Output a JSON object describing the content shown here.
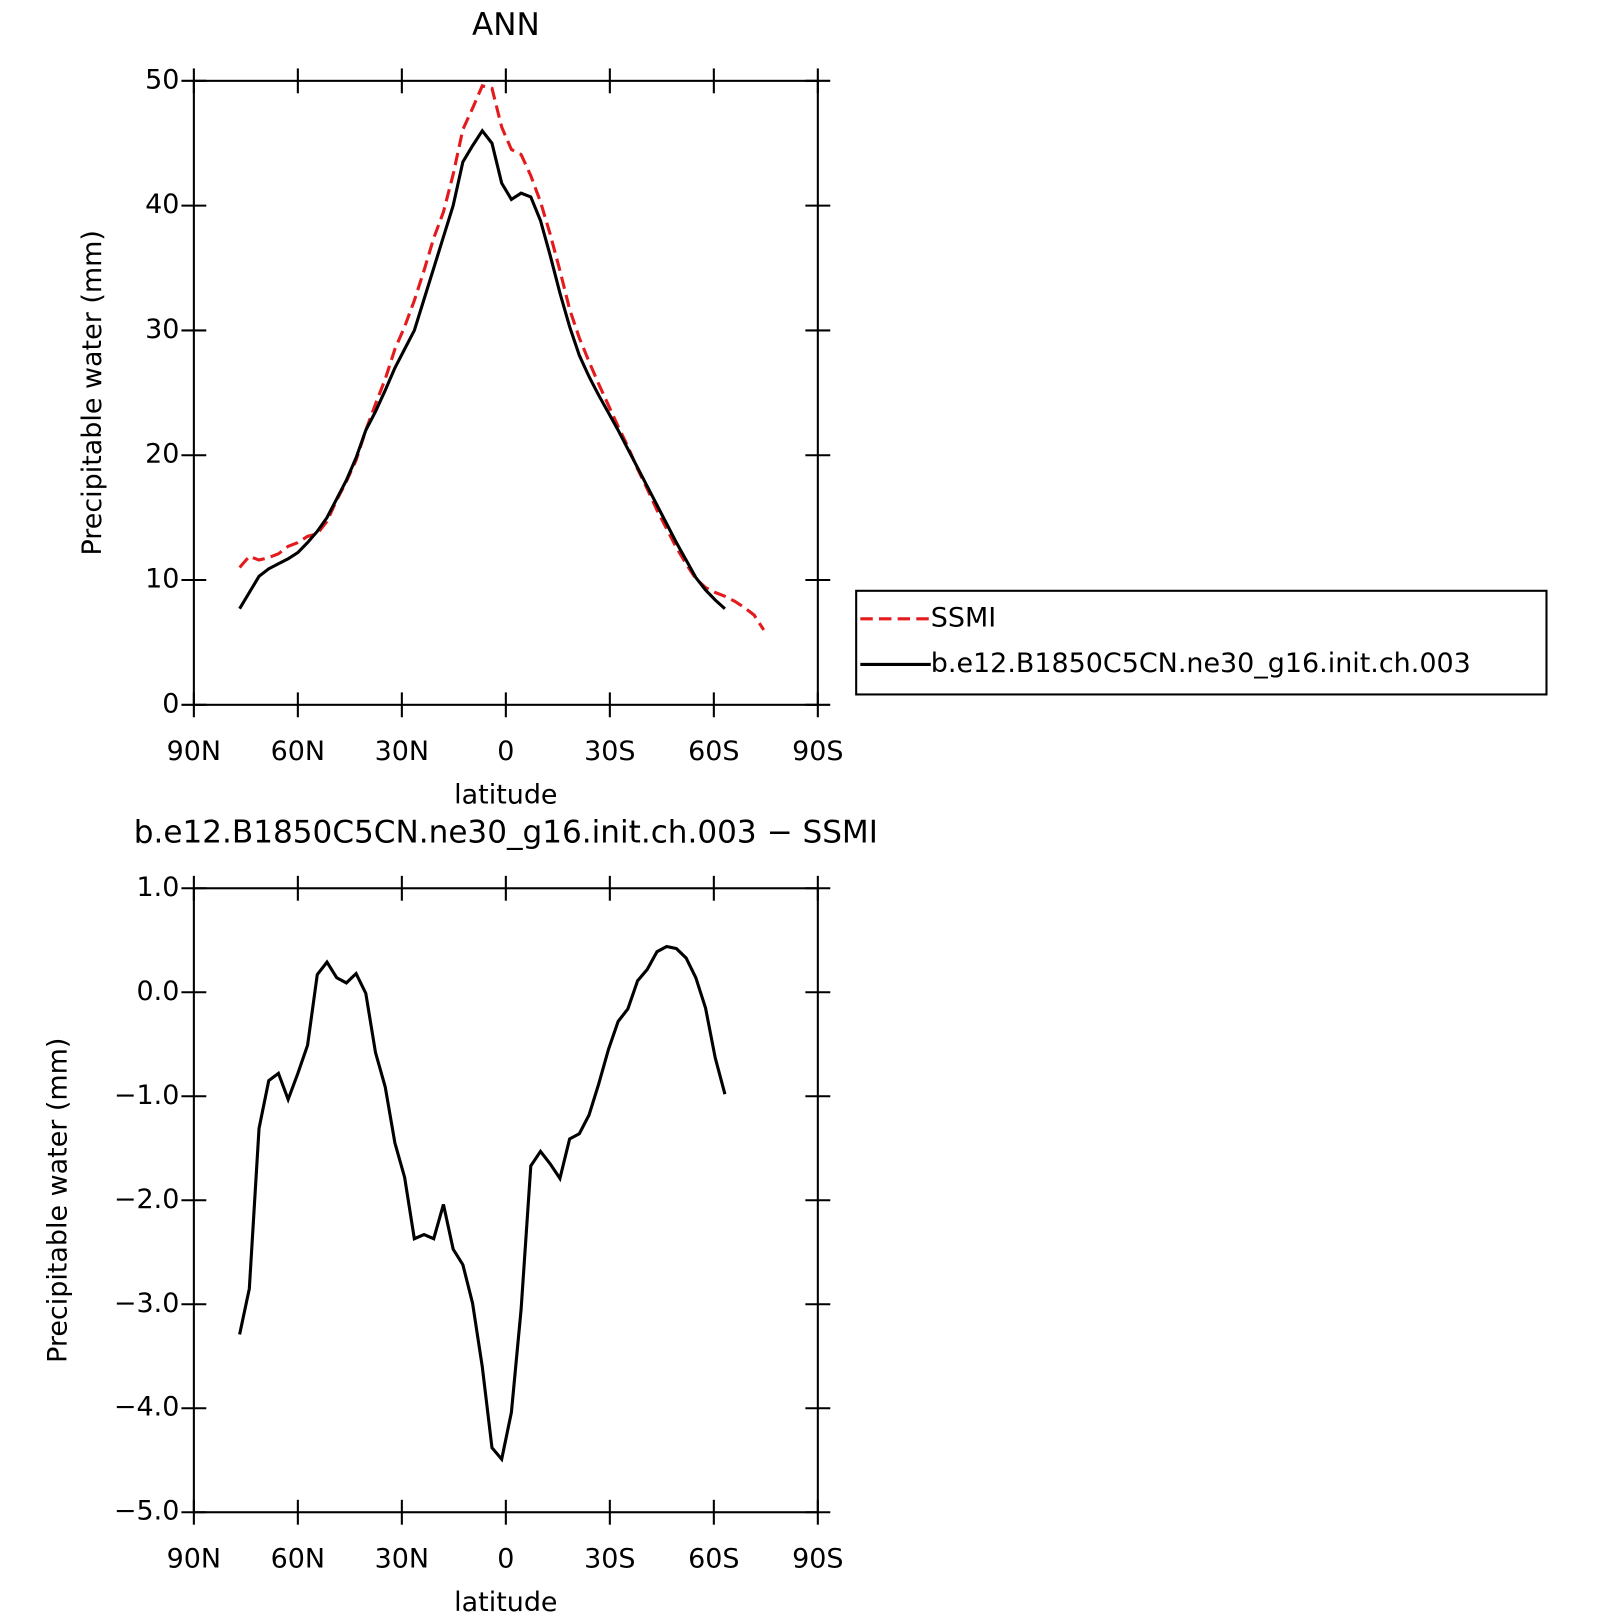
{
  "chart_data": [
    {
      "type": "line",
      "title": "ANN",
      "xlabel": "latitude",
      "ylabel": "Precipitable water (mm)",
      "x": [
        76.8,
        74.0,
        71.2,
        68.4,
        65.6,
        62.8,
        60.0,
        57.2,
        54.4,
        51.6,
        48.8,
        46.0,
        43.2,
        40.4,
        37.6,
        34.8,
        32.0,
        29.2,
        26.4,
        23.6,
        20.8,
        18.0,
        15.2,
        12.4,
        9.6,
        6.8,
        4.0,
        1.2,
        -1.6,
        -4.4,
        -7.2,
        -10.0,
        -12.8,
        -15.6,
        -18.4,
        -21.2,
        -24.0,
        -26.8,
        -29.6,
        -32.4,
        -35.2,
        -38.0,
        -40.8,
        -43.6,
        -46.4,
        -49.2,
        -52.0,
        -54.8,
        -57.6,
        -60.4,
        -63.2,
        -66.0,
        -68.8,
        -71.6,
        -74.4
      ],
      "series": [
        {
          "name": "SSMI",
          "color": "#e41a1c",
          "style": "dashed",
          "values": [
            11.0,
            11.9,
            11.6,
            11.8,
            12.1,
            12.7,
            13.0,
            13.5,
            13.7,
            14.7,
            16.4,
            17.9,
            19.6,
            22.0,
            24.1,
            26.1,
            28.5,
            30.3,
            32.4,
            34.8,
            37.4,
            39.5,
            42.5,
            46.1,
            47.8,
            49.6,
            49.4,
            46.3,
            44.5,
            44.1,
            42.4,
            40.3,
            37.7,
            34.8,
            31.7,
            29.4,
            27.5,
            25.7,
            24.0,
            22.3,
            20.7,
            18.9,
            17.3,
            15.6,
            14.1,
            12.6,
            11.3,
            10.1,
            9.4,
            9.0,
            8.7,
            8.3,
            7.8,
            7.2,
            6.0
          ]
        },
        {
          "name": "b.e12.B1850C5CN.ne30_g16.init.ch.003",
          "color": "#000000",
          "style": "solid",
          "values": [
            7.7,
            9.0,
            10.3,
            10.9,
            11.3,
            11.7,
            12.2,
            13.0,
            13.9,
            15.0,
            16.5,
            18.0,
            19.8,
            22.0,
            23.5,
            25.2,
            27.0,
            28.5,
            30.0,
            32.5,
            35.0,
            37.5,
            40.0,
            43.5,
            44.8,
            46.0,
            45.0,
            41.8,
            40.5,
            41.0,
            40.7,
            38.8,
            36.0,
            33.0,
            30.3,
            28.0,
            26.3,
            24.8,
            23.4,
            22.0,
            20.5,
            19.0,
            17.5,
            16.0,
            14.5,
            13.0,
            11.6,
            10.2,
            9.2,
            8.4,
            7.7,
            null,
            null,
            null,
            null
          ]
        }
      ],
      "xlim": [
        90,
        -90
      ],
      "xticks": [
        {
          "value": 90,
          "label": "90N"
        },
        {
          "value": 60,
          "label": "60N"
        },
        {
          "value": 30,
          "label": "30N"
        },
        0,
        {
          "value": -30,
          "label": "30S"
        },
        {
          "value": -60,
          "label": "60S"
        },
        {
          "value": -90,
          "label": "90S"
        }
      ],
      "ylim": [
        0,
        50
      ],
      "yticks": [
        0,
        10,
        20,
        30,
        40,
        50
      ],
      "legend": "right"
    },
    {
      "type": "line",
      "title": "b.e12.B1850C5CN.ne30_g16.init.ch.003 − SSMI",
      "xlabel": "latitude",
      "ylabel": "Precipitable water (mm)",
      "x": [
        76.8,
        74.0,
        71.2,
        68.4,
        65.6,
        62.8,
        60.0,
        57.2,
        54.4,
        51.6,
        48.8,
        46.0,
        43.2,
        40.4,
        37.6,
        34.8,
        32.0,
        29.2,
        26.4,
        23.6,
        20.8,
        18.0,
        15.2,
        12.4,
        9.6,
        6.8,
        4.0,
        1.2,
        -1.6,
        -4.4,
        -7.2,
        -10.0,
        -12.8,
        -15.6,
        -18.4,
        -21.2,
        -24.0,
        -26.8,
        -29.6,
        -32.4,
        -35.2,
        -38.0,
        -40.8,
        -43.6,
        -46.4,
        -49.2,
        -52.0,
        -54.8,
        -57.6,
        -60.4,
        -63.2
      ],
      "values": [
        -3.29,
        -2.85,
        -1.31,
        -0.85,
        -0.78,
        -1.03,
        -0.78,
        -0.51,
        0.17,
        0.29,
        0.14,
        0.09,
        0.18,
        -0.01,
        -0.58,
        -0.91,
        -1.45,
        -1.78,
        -2.37,
        -2.33,
        -2.37,
        -2.04,
        -2.47,
        -2.62,
        -2.99,
        -3.6,
        -4.38,
        -4.49,
        -4.04,
        -3.05,
        -1.67,
        -1.53,
        -1.65,
        -1.79,
        -1.41,
        -1.36,
        -1.18,
        -0.88,
        -0.55,
        -0.28,
        -0.16,
        0.11,
        0.22,
        0.39,
        0.44,
        0.42,
        0.33,
        0.14,
        -0.15,
        -0.63,
        -0.98
      ],
      "color": "#000000",
      "xlim": [
        90,
        -90
      ],
      "xticks": [
        {
          "value": 90,
          "label": "90N"
        },
        {
          "value": 60,
          "label": "60N"
        },
        {
          "value": 30,
          "label": "30N"
        },
        0,
        {
          "value": -30,
          "label": "30S"
        },
        {
          "value": -60,
          "label": "60S"
        },
        {
          "value": -90,
          "label": "90S"
        }
      ],
      "ylim": [
        -5,
        1
      ],
      "yticks": [
        {
          "value": -5,
          "label": "−5.0"
        },
        {
          "value": -4,
          "label": "−4.0"
        },
        {
          "value": -3,
          "label": "−3.0"
        },
        {
          "value": -2,
          "label": "−2.0"
        },
        {
          "value": -1,
          "label": "−1.0"
        },
        {
          "value": 0,
          "label": "0.0"
        },
        {
          "value": 1,
          "label": "1.0"
        }
      ]
    }
  ]
}
